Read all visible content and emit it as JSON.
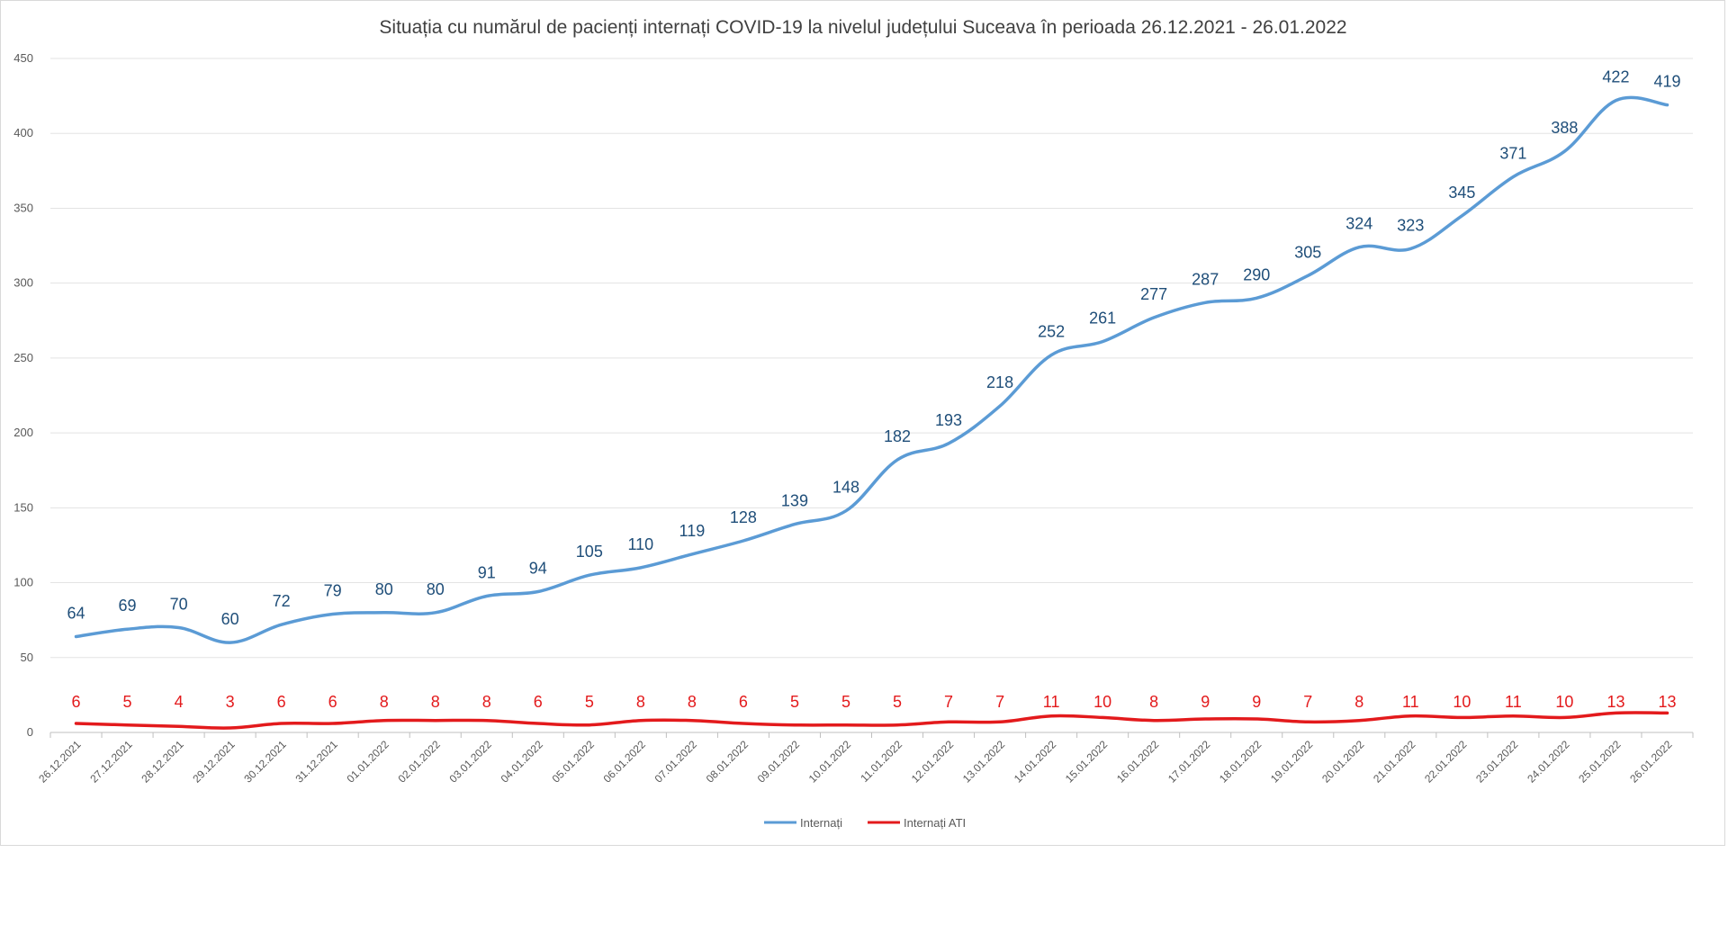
{
  "chart_data": {
    "type": "line",
    "title": "Situația cu numărul de pacienți internați COVID-19 la nivelul județului Suceava în perioada 26.12.2021 - 26.01.2022",
    "xlabel": "",
    "ylabel": "",
    "ylim": [
      0,
      450
    ],
    "yticks": [
      0,
      50,
      100,
      150,
      200,
      250,
      300,
      350,
      400,
      450
    ],
    "grid": true,
    "legend_position": "bottom",
    "categories": [
      "26.12.2021",
      "27.12.2021",
      "28.12.2021",
      "29.12.2021",
      "30.12.2021",
      "31.12.2021",
      "01.01.2022",
      "02.01.2022",
      "03.01.2022",
      "04.01.2022",
      "05.01.2022",
      "06.01.2022",
      "07.01.2022",
      "08.01.2022",
      "09.01.2022",
      "10.01.2022",
      "11.01.2022",
      "12.01.2022",
      "13.01.2022",
      "14.01.2022",
      "15.01.2022",
      "16.01.2022",
      "17.01.2022",
      "18.01.2022",
      "19.01.2022",
      "20.01.2022",
      "21.01.2022",
      "22.01.2022",
      "23.01.2022",
      "24.01.2022",
      "25.01.2022",
      "26.01.2022"
    ],
    "series": [
      {
        "name": "Internați",
        "color": "#5b9bd5",
        "label_color": "#1f4e79",
        "values": [
          64,
          69,
          70,
          60,
          72,
          79,
          80,
          80,
          91,
          94,
          105,
          110,
          119,
          128,
          139,
          148,
          182,
          193,
          218,
          252,
          261,
          277,
          287,
          290,
          305,
          324,
          323,
          345,
          371,
          388,
          422,
          419
        ]
      },
      {
        "name": "Internați ATI",
        "color": "#e31a1c",
        "label_color": "#e31a1c",
        "values": [
          6,
          5,
          4,
          3,
          6,
          6,
          8,
          8,
          8,
          6,
          5,
          8,
          8,
          6,
          5,
          5,
          5,
          7,
          7,
          11,
          10,
          8,
          9,
          9,
          7,
          8,
          11,
          10,
          11,
          10,
          13,
          13
        ]
      }
    ]
  }
}
